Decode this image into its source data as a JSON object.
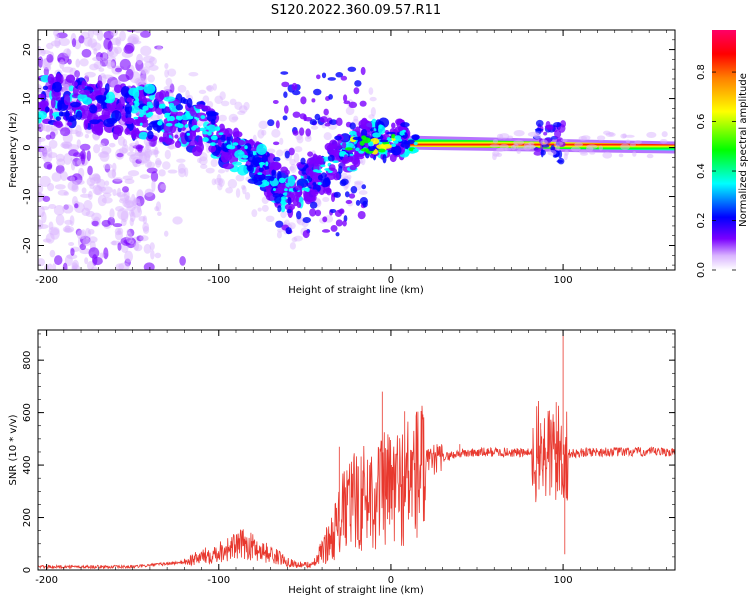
{
  "title": "S120.2022.360.09.57.R11",
  "charts": [
    {
      "type": "heatmap",
      "xlabel": "Height of straight line (km)",
      "ylabel": "Frequency (Hz)",
      "xlim": [
        -205,
        165
      ],
      "ylim": [
        -25,
        24
      ],
      "xticks": [
        -200,
        -100,
        0,
        100
      ],
      "xtick_labels": [
        "-200",
        "-100",
        "0",
        "100"
      ],
      "yticks": [
        -20,
        -10,
        0,
        10,
        20
      ],
      "ytick_labels": [
        "-20",
        "-10",
        "0",
        "10",
        "20"
      ],
      "colorbar": {
        "label": "Normalized spectral amplitude",
        "range": [
          0,
          0.97
        ],
        "ticks": [
          0,
          0.2,
          0.4,
          0.6,
          0.8
        ],
        "tick_labels": [
          "0.0",
          "0.2",
          "0.4",
          "0.6",
          "0.8"
        ],
        "colormap": [
          "#ffffff",
          "#d9b3ff",
          "#7a00ff",
          "#0000ff",
          "#00ffff",
          "#00ff00",
          "#ffff00",
          "#ff8000",
          "#ff0000",
          "#ff0066"
        ]
      },
      "features": {
        "noise_region_x": [
          -205,
          -150
        ],
        "descending_track": [
          [
            -200,
            10
          ],
          [
            -170,
            8
          ],
          [
            -140,
            7
          ],
          [
            -110,
            4
          ],
          [
            -90,
            -1
          ],
          [
            -75,
            -4
          ],
          [
            -60,
            -10
          ],
          [
            -45,
            -6
          ],
          [
            -30,
            -2
          ],
          [
            -10,
            2
          ],
          [
            10,
            1
          ]
        ],
        "steady_line_x": [
          10,
          165
        ],
        "steady_line_freq": [
          1,
          0
        ],
        "steady_line_amplitude": 0.9,
        "perturbation_x": 92
      }
    },
    {
      "type": "line",
      "xlabel": "Height of straight line (km)",
      "ylabel": "SNR (10 * v/v)",
      "xlim": [
        -205,
        165
      ],
      "ylim": [
        0,
        915
      ],
      "xticks": [
        -200,
        -100,
        0,
        100
      ],
      "xtick_labels": [
        "-200",
        "-100",
        "0",
        "100"
      ],
      "yticks": [
        0,
        200,
        400,
        600,
        800
      ],
      "ytick_labels": [
        "0",
        "200",
        "400",
        "600",
        "800"
      ],
      "line_color": "#e8382e",
      "profile": [
        [
          -205,
          12
        ],
        [
          -150,
          12
        ],
        [
          -120,
          30
        ],
        [
          -100,
          70
        ],
        [
          -85,
          100
        ],
        [
          -70,
          60
        ],
        [
          -55,
          20
        ],
        [
          -45,
          20
        ],
        [
          -35,
          120
        ],
        [
          -25,
          250
        ],
        [
          -15,
          280
        ],
        [
          -5,
          300
        ],
        [
          5,
          320
        ],
        [
          15,
          370
        ],
        [
          25,
          420
        ],
        [
          40,
          445
        ],
        [
          60,
          450
        ],
        [
          85,
          445
        ],
        [
          100,
          440
        ],
        [
          115,
          450
        ],
        [
          140,
          450
        ],
        [
          165,
          450
        ]
      ],
      "spikes": [
        [
          -5,
          680
        ],
        [
          8,
          605
        ],
        [
          -30,
          470
        ],
        [
          -12,
          410
        ],
        [
          40,
          480
        ],
        [
          96,
          640
        ],
        [
          100,
          915
        ],
        [
          101,
          60
        ],
        [
          87,
          560
        ]
      ]
    }
  ]
}
